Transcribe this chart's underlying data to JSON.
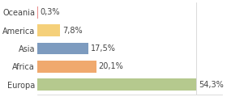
{
  "categories": [
    "Oceania",
    "America",
    "Asia",
    "Africa",
    "Europa"
  ],
  "values": [
    0.3,
    7.8,
    17.5,
    20.1,
    54.3
  ],
  "labels": [
    "0,3%",
    "7,8%",
    "17,5%",
    "20,1%",
    "54,3%"
  ],
  "bar_colors": [
    "#e88a8a",
    "#f5d07a",
    "#7d9bbf",
    "#f0a96e",
    "#b5c98e"
  ],
  "background_color": "#ffffff",
  "xlim": [
    0,
    63
  ],
  "label_fontsize": 7.0,
  "tick_fontsize": 7.0
}
